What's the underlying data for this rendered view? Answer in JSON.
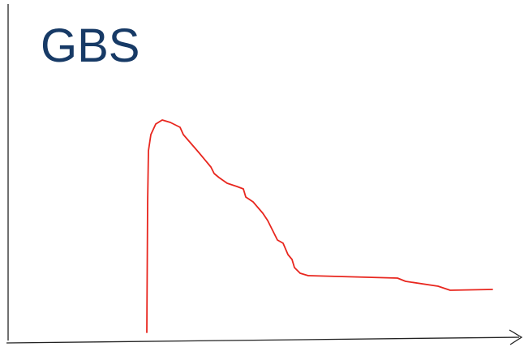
{
  "title": "GBS"
}
